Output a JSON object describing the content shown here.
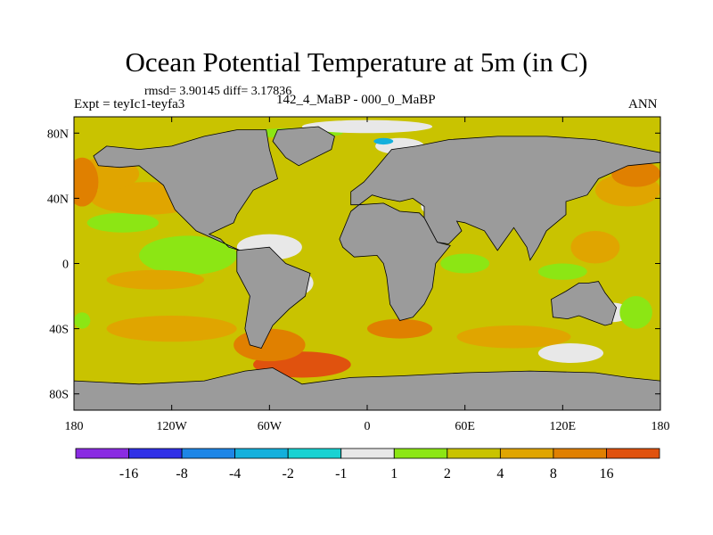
{
  "title": "Ocean Potential Temperature at 5m (in C)",
  "stats": "rmsd= 3.90145 diff= 3.17836",
  "experiment": "Expt = teyIc1-teyfa3",
  "period": "142_4_MaBP - 000_0_MaBP",
  "season": "ANN",
  "colors": {
    "land": "#9b9b9b",
    "background_field": "#c9c300",
    "neg16": "#8a2be2",
    "neg8": "#3030e6",
    "neg4": "#1e86e6",
    "neg2": "#14b0dc",
    "neg1": "#18d2d2",
    "zero": "#e8e8e8",
    "pos1": "#8ce614",
    "pos2": "#c9c300",
    "pos4": "#e0a500",
    "pos8": "#e08000",
    "pos16": "#e0520e",
    "max": "#dc2e0a"
  },
  "chart_data": {
    "type": "map",
    "title": "Ocean Potential Temperature at 5m (in C)",
    "variable": "Ocean Potential Temperature at 5m",
    "units": "C",
    "lon_range": [
      -180,
      180
    ],
    "lat_range": [
      -90,
      90
    ],
    "x_ticks": [
      {
        "lon": -180,
        "label": "180"
      },
      {
        "lon": -120,
        "label": "120W"
      },
      {
        "lon": -60,
        "label": "60W"
      },
      {
        "lon": 0,
        "label": "0"
      },
      {
        "lon": 60,
        "label": "60E"
      },
      {
        "lon": 120,
        "label": "120E"
      },
      {
        "lon": 180,
        "label": "180"
      }
    ],
    "y_ticks": [
      {
        "lat": 80,
        "label": "80N"
      },
      {
        "lat": 40,
        "label": "40N"
      },
      {
        "lat": 0,
        "label": "0"
      },
      {
        "lat": -40,
        "label": "40S"
      },
      {
        "lat": -80,
        "label": "80S"
      }
    ],
    "colorbar": {
      "labels": [
        "-16",
        "-8",
        "-4",
        "-2",
        "-1",
        "1",
        "2",
        "4",
        "8",
        "16"
      ],
      "bins": [
        "neg16",
        "neg8",
        "neg4",
        "neg2",
        "neg1",
        "zero",
        "pos1",
        "pos2",
        "pos4",
        "pos8",
        "pos16"
      ]
    },
    "land_masses": [
      {
        "name": "north-america",
        "points": [
          [
            -168,
            66
          ],
          [
            -160,
            72
          ],
          [
            -140,
            70
          ],
          [
            -120,
            72
          ],
          [
            -100,
            78
          ],
          [
            -80,
            82
          ],
          [
            -62,
            82
          ],
          [
            -60,
            70
          ],
          [
            -55,
            52
          ],
          [
            -70,
            45
          ],
          [
            -80,
            30
          ],
          [
            -82,
            25
          ],
          [
            -97,
            18
          ],
          [
            -90,
            15
          ],
          [
            -85,
            10
          ],
          [
            -78,
            8
          ],
          [
            -105,
            20
          ],
          [
            -118,
            33
          ],
          [
            -125,
            48
          ],
          [
            -140,
            60
          ],
          [
            -152,
            59
          ],
          [
            -165,
            60
          ]
        ]
      },
      {
        "name": "greenland",
        "points": [
          [
            -55,
            82
          ],
          [
            -30,
            84
          ],
          [
            -20,
            78
          ],
          [
            -22,
            70
          ],
          [
            -42,
            60
          ],
          [
            -50,
            65
          ],
          [
            -58,
            75
          ]
        ]
      },
      {
        "name": "south-america",
        "points": [
          [
            -80,
            8
          ],
          [
            -60,
            10
          ],
          [
            -50,
            0
          ],
          [
            -35,
            -6
          ],
          [
            -38,
            -20
          ],
          [
            -48,
            -28
          ],
          [
            -58,
            -38
          ],
          [
            -65,
            -52
          ],
          [
            -72,
            -50
          ],
          [
            -75,
            -40
          ],
          [
            -72,
            -20
          ],
          [
            -80,
            -5
          ]
        ]
      },
      {
        "name": "europe-asia",
        "points": [
          [
            -10,
            36
          ],
          [
            -10,
            44
          ],
          [
            -2,
            50
          ],
          [
            5,
            58
          ],
          [
            15,
            70
          ],
          [
            30,
            72
          ],
          [
            50,
            76
          ],
          [
            80,
            78
          ],
          [
            110,
            78
          ],
          [
            140,
            76
          ],
          [
            170,
            70
          ],
          [
            180,
            68
          ],
          [
            180,
            62
          ],
          [
            160,
            60
          ],
          [
            142,
            52
          ],
          [
            135,
            42
          ],
          [
            122,
            38
          ],
          [
            122,
            30
          ],
          [
            110,
            20
          ],
          [
            105,
            10
          ],
          [
            100,
            2
          ],
          [
            98,
            10
          ],
          [
            90,
            22
          ],
          [
            80,
            8
          ],
          [
            72,
            20
          ],
          [
            60,
            25
          ],
          [
            55,
            26
          ],
          [
            58,
            20
          ],
          [
            50,
            12
          ],
          [
            43,
            13
          ],
          [
            35,
            28
          ],
          [
            35,
            35
          ],
          [
            28,
            40
          ],
          [
            20,
            38
          ],
          [
            10,
            40
          ],
          [
            3,
            42
          ],
          [
            -5,
            36
          ]
        ]
      },
      {
        "name": "africa",
        "points": [
          [
            -17,
            15
          ],
          [
            -10,
            32
          ],
          [
            -5,
            36
          ],
          [
            10,
            37
          ],
          [
            20,
            32
          ],
          [
            32,
            31
          ],
          [
            35,
            28
          ],
          [
            43,
            13
          ],
          [
            51,
            11
          ],
          [
            42,
            0
          ],
          [
            40,
            -15
          ],
          [
            35,
            -25
          ],
          [
            28,
            -33
          ],
          [
            20,
            -35
          ],
          [
            14,
            -25
          ],
          [
            12,
            -8
          ],
          [
            10,
            0
          ],
          [
            6,
            5
          ],
          [
            -8,
            4
          ],
          [
            -15,
            10
          ]
        ]
      },
      {
        "name": "australia",
        "points": [
          [
            113,
            -22
          ],
          [
            114,
            -33
          ],
          [
            123,
            -34
          ],
          [
            130,
            -32
          ],
          [
            138,
            -35
          ],
          [
            146,
            -38
          ],
          [
            150,
            -37
          ],
          [
            153,
            -27
          ],
          [
            146,
            -18
          ],
          [
            142,
            -11
          ],
          [
            136,
            -12
          ],
          [
            130,
            -12
          ],
          [
            122,
            -17
          ]
        ]
      },
      {
        "name": "antarctica",
        "points": [
          [
            -180,
            -72
          ],
          [
            -140,
            -74
          ],
          [
            -100,
            -72
          ],
          [
            -75,
            -66
          ],
          [
            -58,
            -64
          ],
          [
            -40,
            -74
          ],
          [
            -10,
            -70
          ],
          [
            20,
            -69
          ],
          [
            60,
            -67
          ],
          [
            100,
            -66
          ],
          [
            140,
            -67
          ],
          [
            160,
            -70
          ],
          [
            180,
            -72
          ],
          [
            180,
            -90
          ],
          [
            -180,
            -90
          ]
        ]
      }
    ],
    "anomaly_patches": [
      {
        "bin": "pos1",
        "lon": -110,
        "lat": 5,
        "rx": 30,
        "ry": 12
      },
      {
        "bin": "pos1",
        "lon": -150,
        "lat": 25,
        "rx": 22,
        "ry": 6
      },
      {
        "bin": "zero",
        "lon": -60,
        "lat": 10,
        "rx": 20,
        "ry": 8
      },
      {
        "bin": "zero",
        "lon": -45,
        "lat": -12,
        "rx": 12,
        "ry": 8
      },
      {
        "bin": "neg1",
        "lon": -65,
        "lat": 0,
        "rx": 8,
        "ry": 2
      },
      {
        "bin": "pos4",
        "lon": -135,
        "lat": 40,
        "rx": 35,
        "ry": 10
      },
      {
        "bin": "pos4",
        "lon": -130,
        "lat": -10,
        "rx": 30,
        "ry": 6
      },
      {
        "bin": "pos4",
        "lon": -120,
        "lat": -40,
        "rx": 40,
        "ry": 8
      },
      {
        "bin": "pos4",
        "lon": -160,
        "lat": 55,
        "rx": 20,
        "ry": 10
      },
      {
        "bin": "pos4",
        "lon": 90,
        "lat": -45,
        "rx": 35,
        "ry": 7
      },
      {
        "bin": "pos4",
        "lon": 160,
        "lat": 45,
        "rx": 20,
        "ry": 10
      },
      {
        "bin": "pos4",
        "lon": 140,
        "lat": 10,
        "rx": 15,
        "ry": 10
      },
      {
        "bin": "pos8",
        "lon": -175,
        "lat": 50,
        "rx": 10,
        "ry": 15
      },
      {
        "bin": "pos8",
        "lon": -75,
        "lat": 60,
        "rx": 10,
        "ry": 5
      },
      {
        "bin": "pos8",
        "lon": 165,
        "lat": 55,
        "rx": 15,
        "ry": 8
      },
      {
        "bin": "pos16",
        "lon": -40,
        "lat": -62,
        "rx": 30,
        "ry": 8
      },
      {
        "bin": "pos8",
        "lon": -60,
        "lat": -50,
        "rx": 22,
        "ry": 10
      },
      {
        "bin": "pos8",
        "lon": 20,
        "lat": -40,
        "rx": 20,
        "ry": 6
      },
      {
        "bin": "pos1",
        "lon": 60,
        "lat": 0,
        "rx": 15,
        "ry": 6
      },
      {
        "bin": "pos1",
        "lon": -45,
        "lat": 80,
        "rx": 30,
        "ry": 3
      },
      {
        "bin": "zero",
        "lon": 0,
        "lat": 84,
        "rx": 40,
        "ry": 4
      },
      {
        "bin": "zero",
        "lon": 20,
        "lat": 72,
        "rx": 15,
        "ry": 5
      },
      {
        "bin": "neg2",
        "lon": 10,
        "lat": 75,
        "rx": 6,
        "ry": 2
      },
      {
        "bin": "zero",
        "lon": 45,
        "lat": 35,
        "rx": 12,
        "ry": 6
      },
      {
        "bin": "neg1",
        "lon": 48,
        "lat": 32,
        "rx": 3,
        "ry": 2
      },
      {
        "bin": "zero",
        "lon": 150,
        "lat": -30,
        "rx": 12,
        "ry": 6
      },
      {
        "bin": "zero",
        "lon": 125,
        "lat": -55,
        "rx": 20,
        "ry": 6
      },
      {
        "bin": "pos1",
        "lon": 165,
        "lat": -30,
        "rx": 10,
        "ry": 10
      },
      {
        "bin": "pos1",
        "lon": 75,
        "lat": 40,
        "rx": 18,
        "ry": 12
      },
      {
        "bin": "zero",
        "lon": 5,
        "lat": -83,
        "rx": 25,
        "ry": 4
      },
      {
        "bin": "pos1",
        "lon": -175,
        "lat": -35,
        "rx": 5,
        "ry": 5
      },
      {
        "bin": "pos1",
        "lon": 120,
        "lat": -5,
        "rx": 15,
        "ry": 5
      }
    ]
  }
}
